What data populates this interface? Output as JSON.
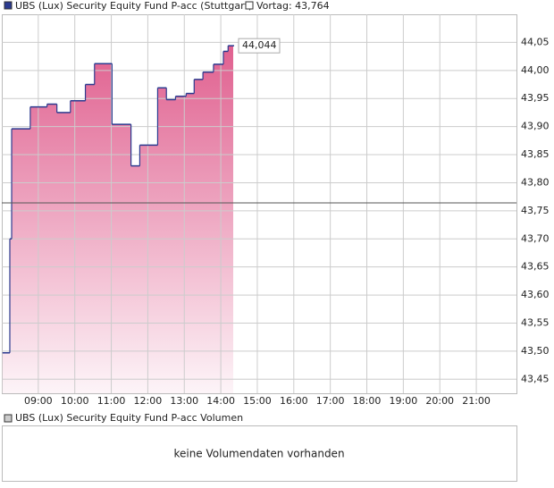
{
  "chart_data": {
    "type": "step-area",
    "title": "UBS (Lux) Security Equity Fund P-acc (Stuttgart)",
    "previous_close": {
      "value": 43.764,
      "label": "Vortag: 43,764"
    },
    "series": [
      {
        "name": "UBS (Lux) Security Equity Fund P-acc (Stuttgart)",
        "color": "#2b3a8f",
        "x": [
          8.02,
          8.22,
          8.27,
          8.78,
          9.24,
          9.51,
          9.88,
          10.29,
          10.54,
          11.02,
          11.54,
          11.78,
          12.27,
          12.51,
          12.76,
          13.05,
          13.27,
          13.51,
          13.8,
          14.07,
          14.2,
          14.34
        ],
        "values": [
          43.497,
          43.7,
          43.896,
          43.935,
          43.94,
          43.925,
          43.946,
          43.975,
          44.012,
          43.904,
          43.83,
          43.867,
          43.969,
          43.948,
          43.954,
          43.959,
          43.984,
          43.997,
          44.011,
          44.034,
          44.044,
          44.044
        ]
      }
    ],
    "last_value_label": "44,044",
    "xlim": [
      8,
      22.1
    ],
    "xticks": [
      {
        "value": 9,
        "label": "09:00"
      },
      {
        "value": 10,
        "label": "10:00"
      },
      {
        "value": 11,
        "label": "11:00"
      },
      {
        "value": 12,
        "label": "12:00"
      },
      {
        "value": 13,
        "label": "13:00"
      },
      {
        "value": 14,
        "label": "14:00"
      },
      {
        "value": 15,
        "label": "15:00"
      },
      {
        "value": 16,
        "label": "16:00"
      },
      {
        "value": 17,
        "label": "17:00"
      },
      {
        "value": 18,
        "label": "18:00"
      },
      {
        "value": 19,
        "label": "19:00"
      },
      {
        "value": 20,
        "label": "20:00"
      },
      {
        "value": 21,
        "label": "21:00"
      }
    ],
    "ylim": [
      43.425,
      44.1
    ],
    "yticks": [
      {
        "value": 43.45,
        "label": "43,45"
      },
      {
        "value": 43.5,
        "label": "43,50"
      },
      {
        "value": 43.55,
        "label": "43,55"
      },
      {
        "value": 43.6,
        "label": "43,60"
      },
      {
        "value": 43.65,
        "label": "43,65"
      },
      {
        "value": 43.7,
        "label": "43,70"
      },
      {
        "value": 43.75,
        "label": "43,75"
      },
      {
        "value": 43.8,
        "label": "43,80"
      },
      {
        "value": 43.85,
        "label": "43,85"
      },
      {
        "value": 43.9,
        "label": "43,90"
      },
      {
        "value": 43.95,
        "label": "43,95"
      },
      {
        "value": 44.0,
        "label": "44,00"
      },
      {
        "value": 44.05,
        "label": "44,05"
      }
    ],
    "grid": true,
    "volume": {
      "title": "UBS (Lux) Security Equity Fund P-acc Volumen",
      "message": "keine Volumendaten vorhanden"
    }
  }
}
